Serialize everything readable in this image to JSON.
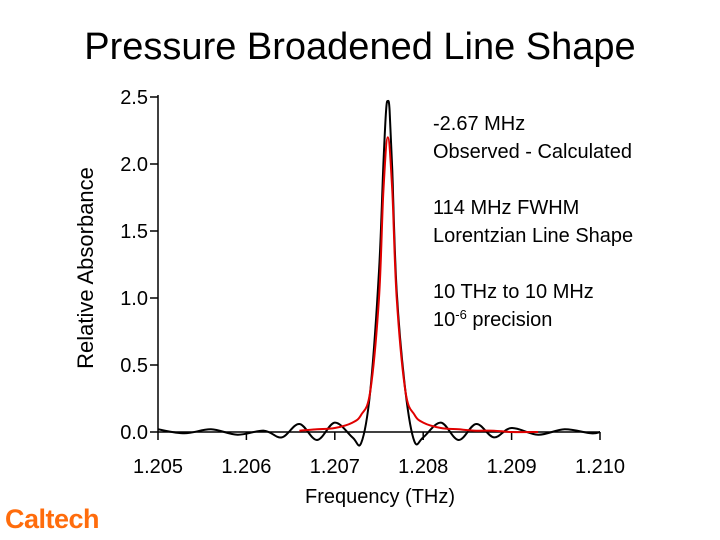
{
  "slide": {
    "title": "Pressure Broadened Line Shape",
    "logo_text": "Caltech",
    "logo_color": "#ff6c0c"
  },
  "annotations": {
    "line1": "-2.67 MHz",
    "line2": "Observed - Calculated",
    "line3": "114 MHz FWHM",
    "line4": "Lorentzian Line Shape",
    "line5": "10 THz to 10 MHz",
    "line6_base": "10",
    "line6_exp": "-6",
    "line6_rest": " precision"
  },
  "chart_data": {
    "type": "line",
    "xlabel": "Frequency (THz)",
    "ylabel": "Relative Absorbance",
    "xlim": [
      1.205,
      1.21
    ],
    "ylim": [
      0.0,
      2.5
    ],
    "x_ticks": [
      "1.205",
      "1.206",
      "1.207",
      "1.208",
      "1.209",
      "1.210"
    ],
    "y_ticks": [
      "0.0",
      "0.5",
      "1.0",
      "1.5",
      "2.0",
      "2.5"
    ],
    "grid": false,
    "series": [
      {
        "color": "#000000",
        "x": [
          1.205,
          1.2053,
          1.2056,
          1.2059,
          1.2062,
          1.2064,
          1.2066,
          1.2068,
          1.207,
          1.2072,
          1.2073,
          1.2074,
          1.2075,
          1.20755,
          1.20758,
          1.2076,
          1.20762,
          1.20765,
          1.2077,
          1.2078,
          1.2079,
          1.208,
          1.2082,
          1.2084,
          1.2086,
          1.2088,
          1.209,
          1.2093,
          1.2096,
          1.2099,
          1.21
        ],
        "y": [
          0.02,
          -0.01,
          0.02,
          -0.02,
          0.01,
          -0.04,
          0.06,
          -0.06,
          0.07,
          -0.04,
          -0.08,
          0.3,
          1.2,
          2.0,
          2.4,
          2.47,
          2.4,
          1.95,
          1.05,
          0.3,
          -0.07,
          -0.04,
          0.07,
          -0.06,
          0.06,
          -0.04,
          0.03,
          -0.02,
          0.02,
          -0.01,
          0.0
        ]
      },
      {
        "color": "#e00000",
        "x": [
          1.2066,
          1.2068,
          1.207,
          1.2072,
          1.2073,
          1.2074,
          1.2075,
          1.20755,
          1.2076,
          1.20765,
          1.2077,
          1.2078,
          1.2079,
          1.208,
          1.2082,
          1.2084,
          1.2086,
          1.2088,
          1.209,
          1.2093
        ],
        "y": [
          0.01,
          0.02,
          0.03,
          0.07,
          0.13,
          0.3,
          1.0,
          1.8,
          2.2,
          1.8,
          1.0,
          0.3,
          0.13,
          0.07,
          0.03,
          0.02,
          0.01,
          0.01,
          0.0,
          0.0
        ]
      }
    ]
  }
}
